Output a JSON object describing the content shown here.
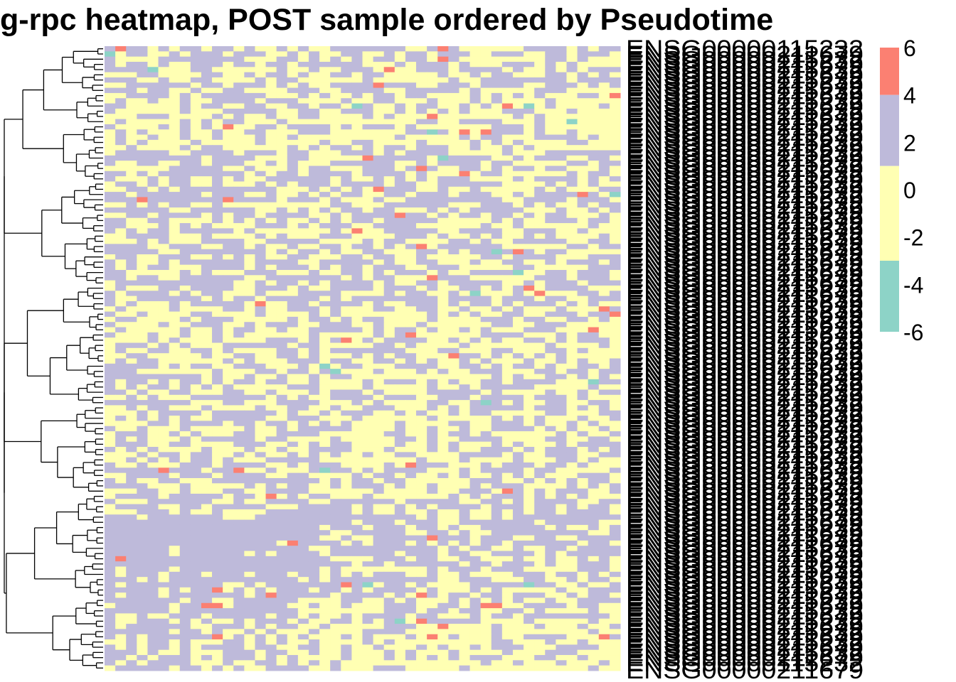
{
  "chart_data": {
    "type": "heatmap",
    "title": "g-rpc heatmap, POST sample ordered by Pseudotime",
    "n_rows": 120,
    "n_cols": 48,
    "colors": {
      "low": "#8dd3c7",
      "mid_low": "#ffffb3",
      "mid_high": "#bebada",
      "high": "#fb8072"
    },
    "legend": {
      "position": "right",
      "ticks": [
        "6",
        "4",
        "2",
        "0",
        "-2",
        "-4",
        "-6"
      ],
      "bins": [
        {
          "range": [
            4,
            6
          ],
          "color": "#fb8072"
        },
        {
          "range": [
            1,
            4
          ],
          "color": "#bebada"
        },
        {
          "range": [
            -3,
            1
          ],
          "color": "#ffffb3"
        },
        {
          "range": [
            -6,
            -3
          ],
          "color": "#8dd3c7"
        }
      ]
    },
    "row_labels_visible": {
      "first": "ENSG00000115232",
      "last": "ENSG00000211679"
    },
    "dendrogram": "rows"
  }
}
